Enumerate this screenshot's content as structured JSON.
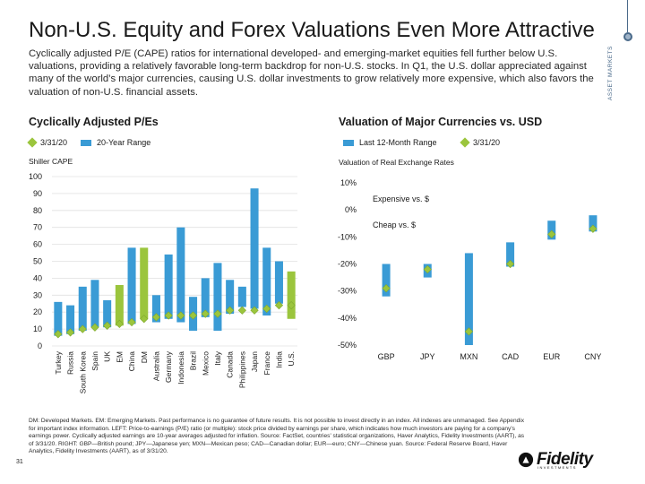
{
  "header": {
    "title": "Non-U.S. Equity and Forex Valuations Even More Attractive",
    "subtitle": "Cyclically adjusted P/E (CAPE) ratios for international developed- and emerging-market equities fell further below U.S. valuations, providing a relatively favorable long-term backdrop for non-U.S. stocks. In Q1, the U.S. dollar appreciated against many of the world’s major currencies, causing U.S. dollar investments to grow relatively more expensive, which also favors the valuation of non-U.S. financial assets.",
    "side_label": "ASSET MARKETS"
  },
  "colors": {
    "blue": "#3a9bd5",
    "green": "#9bc53d",
    "gray_grid": "#e0e0e0"
  },
  "left_chart": {
    "legend_current": "3/31/20",
    "legend_range": "20-Year Range",
    "axis_caption": "Shiller CAPE"
  },
  "right_chart": {
    "legend_range": "Last 12-Month Range",
    "legend_current": "3/31/20",
    "axis_caption": "Valuation of Real Exchange Rates",
    "note_expensive": "Expensive vs. $",
    "note_cheap": "Cheap vs. $"
  },
  "chart_data": [
    {
      "type": "bar",
      "title": "Cyclically Adjusted P/Es",
      "ylabel": "Shiller CAPE",
      "ylim": [
        0,
        100
      ],
      "yticks": [
        0,
        10,
        20,
        30,
        40,
        50,
        60,
        70,
        80,
        90,
        100
      ],
      "categories": [
        "Turkey",
        "Russia",
        "South Korea",
        "Spain",
        "UK",
        "EM",
        "China",
        "DM",
        "Australia",
        "Germany",
        "Indonesia",
        "Brazil",
        "Mexico",
        "Italy",
        "Canada",
        "Philippines",
        "Japan",
        "France",
        "India",
        "U.S."
      ],
      "range_low": [
        6,
        7,
        9,
        11,
        11,
        12,
        13,
        16,
        14,
        16,
        14,
        9,
        17,
        9,
        19,
        23,
        22,
        18,
        25,
        16
      ],
      "range_high": [
        26,
        24,
        35,
        39,
        27,
        36,
        58,
        58,
        30,
        54,
        70,
        29,
        40,
        49,
        39,
        35,
        93,
        58,
        50,
        44
      ],
      "highlighted_categories": [
        "EM",
        "DM",
        "U.S."
      ],
      "current": [
        7,
        8,
        10,
        11,
        12,
        13,
        14,
        16,
        17,
        18,
        18,
        18,
        19,
        19,
        21,
        21,
        21,
        22,
        24,
        24
      ]
    },
    {
      "type": "bar",
      "title": "Valuation of Major Currencies vs. USD",
      "ylabel": "Valuation of Real Exchange Rates",
      "ylim": [
        -50,
        10
      ],
      "yticks": [
        -50,
        -40,
        -30,
        -20,
        -10,
        0,
        10
      ],
      "ytick_labels": [
        "-50%",
        "-40%",
        "-30%",
        "-20%",
        "-10%",
        "0%",
        "10%"
      ],
      "categories": [
        "GBP",
        "JPY",
        "MXN",
        "CAD",
        "EUR",
        "CNY"
      ],
      "range_low": [
        -32,
        -25,
        -50,
        -21,
        -11,
        -8
      ],
      "range_high": [
        -20,
        -20,
        -16,
        -12,
        -4,
        -2
      ],
      "current": [
        -29,
        -22,
        -45,
        -20,
        -9,
        -7
      ]
    }
  ]
}
